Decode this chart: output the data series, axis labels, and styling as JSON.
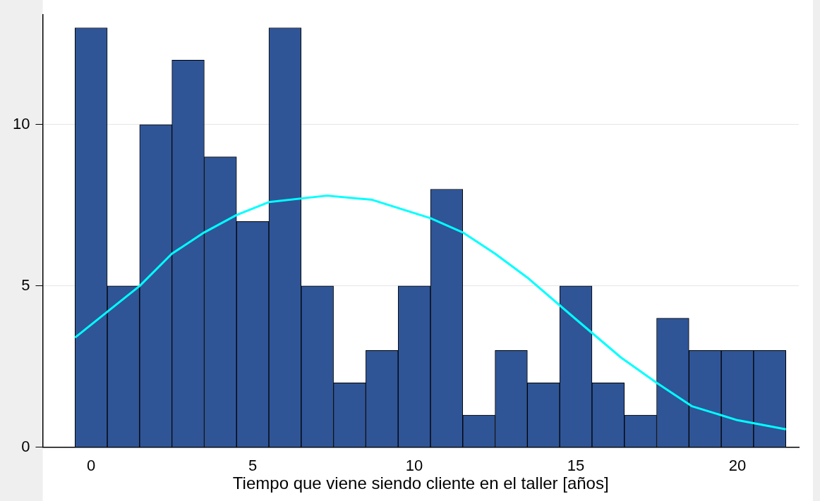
{
  "chart_data": {
    "type": "histogram",
    "xlabel": "Tiempo que viene siendo cliente en el taller [años]",
    "bins": [
      -0.5,
      0.5,
      1.5,
      2.5,
      3.5,
      4.5,
      5.5,
      6.5,
      7.5,
      8.5,
      9.5,
      10.5,
      11.5,
      12.5,
      13.5,
      14.5,
      15.5,
      16.5,
      17.5,
      18.5,
      19.5,
      20.5,
      21.5
    ],
    "series": [
      {
        "color": "#2f5597",
        "values": [
          13,
          5,
          10,
          12,
          9,
          7,
          13,
          5,
          2,
          3,
          5,
          8,
          1,
          3,
          2,
          5,
          2,
          1,
          4,
          3,
          3,
          3
        ]
      },
      {
        "type": "line",
        "color": "#00ffff",
        "x": [
          -0.5,
          1,
          1.5,
          2.5,
          3.5,
          4.5,
          5.5,
          7.3,
          8.7,
          10.5,
          11.5,
          12.5,
          13.5,
          15,
          16.4,
          17.5,
          18.6,
          20,
          21.5
        ],
        "values": [
          3.4,
          4.6,
          5.0,
          6.0,
          6.66,
          7.2,
          7.6,
          7.8,
          7.67,
          7.1,
          6.66,
          6.0,
          5.26,
          3.97,
          2.78,
          2.0,
          1.27,
          0.84,
          0.56
        ]
      }
    ],
    "xlim": [
      -1.5,
      21.9
    ],
    "xticks": [
      0,
      5,
      10,
      15,
      20
    ],
    "ylim": [
      0,
      13.4
    ],
    "yticks": [
      0,
      5,
      10
    ],
    "grid": "y",
    "legend": false,
    "marker": "none"
  }
}
